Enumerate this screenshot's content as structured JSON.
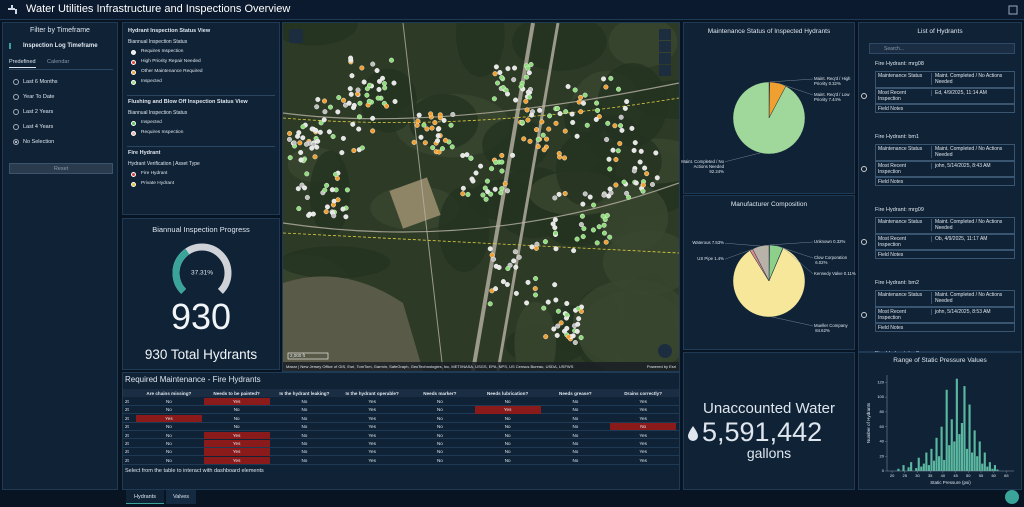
{
  "header": {
    "title": "Water Utilities Infrastructure and Inspections Overview"
  },
  "filter": {
    "title": "Filter by Timeframe",
    "subtitle": "Inspection Log Timeframe",
    "tabs": [
      "Predefined",
      "Calendar"
    ],
    "options": [
      "Last 6 Months",
      "Year To Date",
      "Last 2 Years",
      "Last 4 Years",
      "No Selection"
    ],
    "selected": 4,
    "button": "Reset"
  },
  "legend": {
    "sections": [
      {
        "title": "Hydrant Inspection Status View",
        "subtitle": "Biannual Inspection Status",
        "items": [
          {
            "label": "Requires Inspection",
            "color": "#e6e6e6"
          },
          {
            "label": "High Priority Repair Needed",
            "color": "#e0402f"
          },
          {
            "label": "Other Maintenance Required",
            "color": "#f0a030"
          },
          {
            "label": "Inspected",
            "color": "#8fdc7a"
          }
        ]
      },
      {
        "title": "Flushing and Blow Off Inspection Status View",
        "subtitle": "Biannual Inspection Status",
        "items": [
          {
            "label": "Inspected",
            "color": "#4fc34a"
          },
          {
            "label": "Requires Inspection",
            "color": "#f2b0a8"
          }
        ]
      },
      {
        "title": "Fire Hydrant",
        "subtitle": "Hydrant Verification | Asset Type",
        "items": [
          {
            "label": "Fire Hydrant",
            "color": "#d04040"
          },
          {
            "label": "Private Hydrant",
            "color": "#e0c030"
          }
        ]
      }
    ]
  },
  "map": {
    "attribution": "Maxar | New Jersey Office of GIS, Esri, TomTom, Garmin, SafeGraph, GeoTechnologies, Inc, METI/NASA, USGS, EPA, NPS, US Census Bureau, USDA, USFWS",
    "powered_by": "Powered by Esri",
    "scale": "2,000 ft"
  },
  "chart_data": [
    {
      "type": "pie",
      "title": "Maintenance Status of Inspected Hydrants",
      "categories": [
        "Maint. Req'd / High Priority",
        "Maint. Req'd / Low Priority",
        "Maint. Completed / No Actions Needed"
      ],
      "values": [
        0.32,
        7.44,
        92.24
      ],
      "value_labels": [
        "0.32%",
        "7.44%",
        "92.24%"
      ],
      "colors": [
        "#e0402f",
        "#f0a030",
        "#9fd89a"
      ]
    },
    {
      "type": "pie",
      "title": "Manufacturer Composition",
      "categories": [
        "Unknown",
        "Clow Corporation",
        "Kennedy Valve",
        "Mueller Company",
        "US Pipe",
        "Waterous"
      ],
      "values": [
        0.32,
        6.02,
        0.11,
        84.62,
        1.4,
        7.53
      ],
      "value_labels": [
        "0.32%",
        "6.02%",
        "0.11%",
        "84.62%",
        "1.4%",
        "7.53%"
      ],
      "colors": [
        "#e8e8e8",
        "#8dd08a",
        "#5fa0d0",
        "#f6e79b",
        "#d88a8a",
        "#b9b2a8"
      ]
    },
    {
      "type": "histogram",
      "title": "Range of Static Pressure Values",
      "x_label": "Static Pressure (psi)",
      "y_label": "Number of Hydrants",
      "bins": [
        22,
        23,
        24,
        25,
        26,
        27,
        28,
        29,
        30,
        31,
        32,
        33,
        34,
        35,
        36,
        37,
        38,
        39,
        40,
        41,
        42,
        43,
        44,
        45,
        46,
        47,
        48,
        49,
        50,
        51,
        52,
        53,
        54,
        55,
        56,
        57,
        58,
        59,
        60,
        61,
        62
      ],
      "values": [
        3,
        0,
        8,
        0,
        5,
        12,
        0,
        4,
        18,
        6,
        10,
        25,
        8,
        30,
        14,
        45,
        20,
        60,
        15,
        110,
        35,
        70,
        40,
        125,
        50,
        65,
        115,
        30,
        90,
        25,
        55,
        20,
        40,
        10,
        25,
        6,
        12,
        3,
        8,
        2
      ],
      "color": "#5bb8a0",
      "xlim": [
        18,
        68
      ],
      "xticks": [
        20,
        25,
        30,
        35,
        40,
        45,
        50,
        55,
        60,
        65
      ],
      "ylim": [
        0,
        130
      ],
      "yticks": [
        0,
        20,
        40,
        60,
        80,
        100,
        120
      ]
    },
    {
      "type": "gauge",
      "title": "Biannual Inspection Progress",
      "value": 37.31,
      "value_label": "37.31%",
      "ylim": [
        0,
        100
      ],
      "color": "#3aa39a",
      "count": 930,
      "count_label": "930 Total Hydrants"
    }
  ],
  "list": {
    "title": "List of Hydrants",
    "search": "Search...",
    "items": [
      {
        "title": "Fire Hydrant: mrg08",
        "fields": [
          [
            "Maintenance Status",
            "Maint. Completed / No Actions Needed"
          ],
          [
            "Most Recent Inspection",
            "Ed, 4/9/2025, 11:14 AM"
          ],
          [
            "Field Notes"
          ]
        ]
      },
      {
        "title": "Fire Hydrant: bm1",
        "fields": [
          [
            "Maintenance Status",
            "Maint. Completed / No Actions Needed"
          ],
          [
            "Most Recent Inspection",
            "john, 5/14/2025, 8:43 AM"
          ],
          [
            "Field Notes"
          ]
        ]
      },
      {
        "title": "Fire Hydrant: mrg09",
        "fields": [
          [
            "Maintenance Status",
            "Maint. Completed / No Actions Needed"
          ],
          [
            "Most Recent Inspection",
            "Ob, 4/9/2025, 11:17 AM"
          ],
          [
            "Field Notes"
          ]
        ]
      },
      {
        "title": "Fire Hydrant: bm2",
        "fields": [
          [
            "Maintenance Status",
            "Maint. Completed / No Actions Needed"
          ],
          [
            "Most Recent Inspection",
            "john, 5/14/2025, 8:53 AM"
          ],
          [
            "Field Notes"
          ]
        ]
      }
    ],
    "partial": "Fire Hydrant: bm3"
  },
  "kpi": {
    "title": "Unaccounted Water",
    "value": "5,591,442",
    "unit": "gallons"
  },
  "table": {
    "title": "Required Maintenance - Fire Hydrants",
    "alert_color": "#8b1a1a",
    "columns": [
      {
        "label": "Are chains missing?",
        "alert": "Yes"
      },
      {
        "label": "Needs to be painted?",
        "alert": "Yes"
      },
      {
        "label": "Is the hydrant leaking?",
        "alert": "Yes"
      },
      {
        "label": "Is the hydrant operable?",
        "alert": "No"
      },
      {
        "label": "Needs marker?",
        "alert": "Yes"
      },
      {
        "label": "Needs lubrication?",
        "alert": "Yes"
      },
      {
        "label": "Needs grease?",
        "alert": "Yes"
      },
      {
        "label": "Drains correctly?",
        "alert": "No"
      }
    ],
    "rows": [
      {
        "id": "2t",
        "cells": [
          "No",
          "Yes",
          "No",
          "Yes",
          "No",
          "No",
          "No",
          "Yes"
        ]
      },
      {
        "id": "2t",
        "cells": [
          "No",
          "No",
          "No",
          "Yes",
          "No",
          "Yes",
          "No",
          "Yes"
        ]
      },
      {
        "id": "2t",
        "cells": [
          "Yes",
          "No",
          "No",
          "Yes",
          "No",
          "No",
          "No",
          "Yes"
        ]
      },
      {
        "id": "2t",
        "cells": [
          "No",
          "No",
          "No",
          "Yes",
          "No",
          "No",
          "No",
          "No"
        ]
      },
      {
        "id": "2t",
        "cells": [
          "No",
          "Yes",
          "No",
          "Yes",
          "No",
          "No",
          "No",
          "Yes"
        ]
      },
      {
        "id": "2t",
        "cells": [
          "No",
          "Yes",
          "No",
          "Yes",
          "No",
          "No",
          "No",
          "Yes"
        ]
      },
      {
        "id": "2t",
        "cells": [
          "No",
          "Yes",
          "No",
          "Yes",
          "No",
          "No",
          "No",
          "Yes"
        ]
      },
      {
        "id": "2t",
        "cells": [
          "No",
          "Yes",
          "No",
          "Yes",
          "No",
          "No",
          "No",
          "Yes"
        ]
      }
    ],
    "footer": "Select from the table to interact with dashboard elements",
    "tabs": [
      "Hydrants",
      "Valves"
    ],
    "active_tab": 0
  }
}
